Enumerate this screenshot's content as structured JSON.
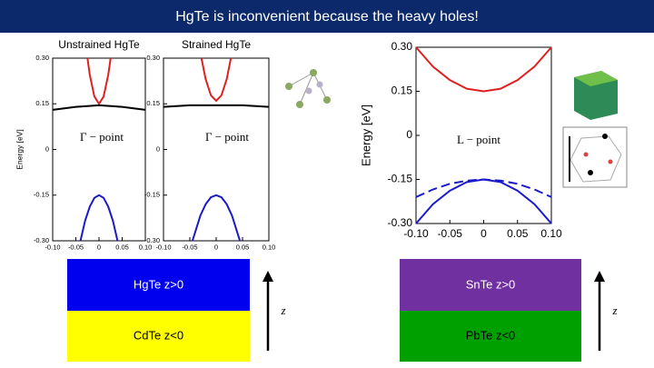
{
  "title": "HgTe is inconvenient because the heavy holes!",
  "chart_data": [
    {
      "type": "line",
      "title": "Unstrained HgTe",
      "ylabel": "Energy [eV]",
      "annotation": "Γ − point",
      "xlim": [
        -0.1,
        0.1
      ],
      "ylim": [
        -0.3,
        0.3
      ],
      "xticks": [
        {
          "value": -0.1,
          "label": "-0.10"
        },
        -0.05,
        0,
        0.05,
        {
          "value": 0.1,
          "label": "0.10"
        }
      ],
      "yticks": [
        {
          "value": 0.3,
          "label": "0.30"
        },
        0.15,
        0,
        -0.15,
        {
          "value": -0.3,
          "label": "-0.30"
        }
      ],
      "series": [
        {
          "color": "#e02020",
          "x": [
            -0.025,
            -0.02,
            -0.01,
            0,
            0.01,
            0.02,
            0.025
          ],
          "values": [
            0.3,
            0.246,
            0.174,
            0.15,
            0.174,
            0.246,
            0.3
          ]
        },
        {
          "color": "#000000",
          "x": [
            -0.1,
            -0.05,
            0,
            0.05,
            0.1
          ],
          "values": [
            0.13,
            0.14,
            0.145,
            0.14,
            0.13
          ]
        },
        {
          "color": "#1a1acc",
          "x": [
            -0.04,
            -0.03,
            -0.02,
            -0.01,
            0,
            0.01,
            0.02,
            0.03,
            0.04
          ],
          "values": [
            -0.3,
            -0.234,
            -0.188,
            -0.159,
            -0.15,
            -0.159,
            -0.188,
            -0.234,
            -0.3
          ]
        }
      ]
    },
    {
      "type": "line",
      "title": "Strained HgTe",
      "annotation": "Γ − point",
      "xlim": [
        -0.1,
        0.1
      ],
      "ylim": [
        -0.3,
        0.3
      ],
      "xticks": [
        {
          "value": -0.1,
          "label": "-0.10"
        },
        -0.05,
        0,
        0.05,
        {
          "value": 0.1,
          "label": "0.10"
        }
      ],
      "yticks": [
        {
          "value": 0.3,
          "label": "0.30"
        },
        0.15,
        0,
        -0.15,
        {
          "value": -0.3,
          "label": "-0.30"
        }
      ],
      "series": [
        {
          "color": "#e02020",
          "x": [
            -0.028,
            -0.02,
            -0.01,
            0,
            0.01,
            0.02,
            0.028
          ],
          "values": [
            0.3,
            0.231,
            0.178,
            0.16,
            0.178,
            0.231,
            0.3
          ]
        },
        {
          "color": "#000000",
          "x": [
            -0.1,
            -0.05,
            0,
            0.05,
            0.1
          ],
          "values": [
            0.14,
            0.145,
            0.145,
            0.145,
            0.14
          ]
        },
        {
          "color": "#1a1acc",
          "x": [
            -0.045,
            -0.03,
            -0.02,
            -0.01,
            0,
            0.01,
            0.02,
            0.03,
            0.045
          ],
          "values": [
            -0.3,
            -0.217,
            -0.18,
            -0.157,
            -0.15,
            -0.157,
            -0.18,
            -0.217,
            -0.3
          ]
        }
      ]
    },
    {
      "type": "line",
      "ylabel": "Energy [eV]",
      "annotation": "L − point",
      "xlim": [
        -0.1,
        0.1
      ],
      "ylim": [
        -0.3,
        0.3
      ],
      "xticks": [
        {
          "value": -0.1,
          "label": "-0.10"
        },
        -0.05,
        0,
        0.05,
        {
          "value": 0.1,
          "label": "0.10"
        }
      ],
      "yticks": [
        {
          "value": 0.3,
          "label": "0.30"
        },
        0.15,
        0,
        -0.15,
        {
          "value": -0.3,
          "label": "-0.30"
        }
      ],
      "series": [
        {
          "color": "#e02020",
          "x": [
            -0.1,
            -0.075,
            -0.05,
            -0.025,
            0,
            0.025,
            0.05,
            0.075,
            0.1
          ],
          "values": [
            0.3,
            0.234,
            0.188,
            0.159,
            0.15,
            0.159,
            0.188,
            0.234,
            0.3
          ]
        },
        {
          "color": "#1a1acc",
          "dashed": true,
          "x": [
            -0.1,
            -0.075,
            -0.05,
            -0.025,
            0,
            0.025,
            0.05,
            0.075,
            0.1
          ],
          "values": [
            -0.21,
            -0.184,
            -0.165,
            -0.154,
            -0.15,
            -0.154,
            -0.165,
            -0.184,
            -0.21
          ]
        },
        {
          "color": "#1a1acc",
          "x": [
            -0.1,
            -0.075,
            -0.05,
            -0.025,
            0,
            0.025,
            0.05,
            0.075,
            0.1
          ],
          "values": [
            -0.3,
            -0.234,
            -0.188,
            -0.159,
            -0.15,
            -0.159,
            -0.188,
            -0.234,
            -0.3
          ]
        }
      ]
    }
  ],
  "panels": [
    {
      "top": {
        "label": "HgTe z>0",
        "color": "#0000ee"
      },
      "bottom": {
        "label": "CdTe z<0",
        "color": "#ffff00"
      },
      "axis": "z"
    },
    {
      "top": {
        "label": "SnTe z>0",
        "color": "#7030a0"
      },
      "bottom": {
        "label": "PbTe z<0",
        "color": "#00a000"
      },
      "axis": "z"
    }
  ]
}
